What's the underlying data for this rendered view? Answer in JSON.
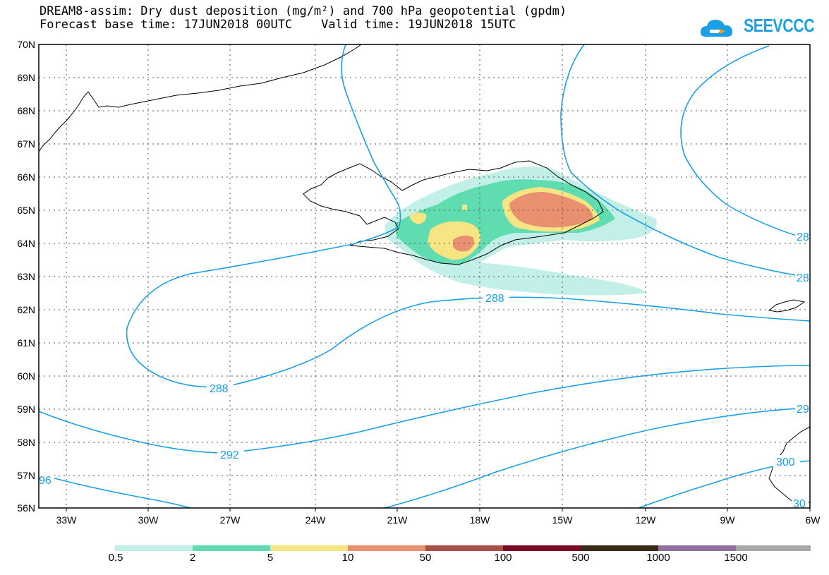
{
  "header": {
    "title_line1": "DREAM8-assim: Dry dust deposition (mg/m²) and 700 hPa geopotential (gpdm)",
    "title_line2": "Forecast base time: 17JUN2018 00UTC    Valid time: 19JUN2018 15UTC"
  },
  "logo": {
    "text": "SEEVCCC",
    "icon": "cloud-icon"
  },
  "map": {
    "lat_labels": [
      "70N",
      "69N",
      "68N",
      "67N",
      "66N",
      "65N",
      "64N",
      "63N",
      "62N",
      "61N",
      "60N",
      "59N",
      "58N",
      "57N",
      "56N"
    ],
    "lon_labels": [
      "33W",
      "30W",
      "27W",
      "24W",
      "21W",
      "18W",
      "15W",
      "12W",
      "9W",
      "6W"
    ],
    "contour_labels": [
      "288",
      "288",
      "292",
      "96",
      "28",
      "28",
      "29",
      "300",
      "30"
    ],
    "contour_color": "#1aa0e6"
  },
  "legend": {
    "labels": [
      "0.5",
      "2",
      "5",
      "10",
      "50",
      "100",
      "500",
      "1000",
      "1500"
    ],
    "colors": [
      "#c2f0e8",
      "#5fdcb0",
      "#f7e584",
      "#e89070",
      "#a85048",
      "#7a0a28",
      "#3a2a18",
      "#9070a0",
      "#a8a8a8"
    ]
  }
}
